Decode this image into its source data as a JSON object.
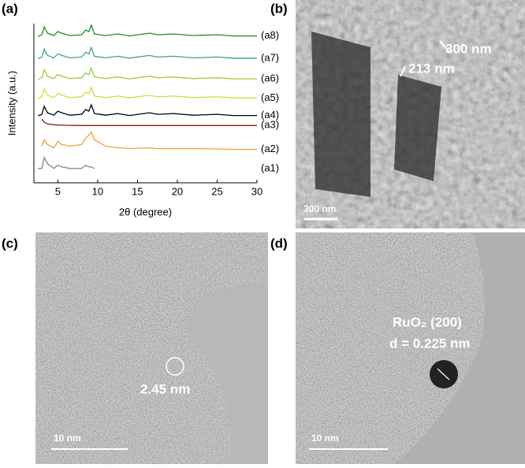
{
  "chart_data": {
    "type": "line",
    "panel_label": "(a)",
    "x_label": "2θ (degree)",
    "y_label": "Intensity (a.u.)",
    "x": [
      2.5,
      3,
      3.3,
      3.7,
      4.5,
      5,
      5.5,
      6.5,
      8,
      8.5,
      8.9,
      9.2,
      9.6,
      11,
      12.5,
      14,
      16.5,
      17.5,
      19.5,
      22,
      25,
      27,
      30
    ],
    "xlim": [
      2,
      30
    ],
    "xticks": [
      5,
      10,
      15,
      20,
      25,
      30
    ],
    "ylim": [
      0,
      100
    ],
    "series": [
      {
        "name": "(a8)",
        "color": "#1e8c1e",
        "values": [
          92,
          93,
          98,
          94,
          92.5,
          95,
          94,
          92.5,
          93,
          96,
          95,
          99,
          93.5,
          92.5,
          93.5,
          92.3,
          94,
          93,
          93.5,
          92.5,
          93,
          92.3,
          92.3
        ]
      },
      {
        "name": "(a7)",
        "color": "#3aaa78",
        "values": [
          78,
          79,
          84,
          80,
          78.5,
          81,
          80,
          78.5,
          79,
          82,
          81,
          85,
          79.5,
          78.5,
          79.5,
          78.3,
          80,
          79,
          79.5,
          78.5,
          79,
          78.3,
          78.3
        ]
      },
      {
        "name": "(a6)",
        "color": "#9ccc32",
        "values": [
          65,
          66,
          71,
          67,
          65.5,
          68,
          67,
          65.5,
          66,
          69,
          68,
          72,
          66.5,
          65.5,
          66.5,
          65.3,
          67,
          66,
          66.5,
          65.5,
          66,
          65.3,
          65.3
        ]
      },
      {
        "name": "(a5)",
        "color": "#d8d640",
        "values": [
          53,
          54,
          59,
          55,
          53.5,
          56,
          55,
          53.5,
          54,
          57,
          56,
          60,
          54.5,
          53.5,
          54.5,
          53.3,
          55,
          54,
          54.5,
          53.5,
          54,
          53.3,
          53.3
        ]
      },
      {
        "name": "(a4)",
        "color": "#000000",
        "values": [
          42,
          43,
          48,
          44,
          42.5,
          45,
          44,
          42.5,
          43,
          46,
          45,
          49,
          43.5,
          42.5,
          43.5,
          42.3,
          44,
          43,
          43.5,
          42.5,
          43,
          42.3,
          42.3
        ]
      },
      {
        "name": "(a3)",
        "color": "#8b1a1a",
        "values": [
          null,
          40,
          38,
          37,
          36.5,
          36.3,
          36.2,
          36.1,
          36,
          36,
          36,
          36,
          36,
          36,
          36,
          36,
          36,
          36,
          36,
          36,
          36,
          36,
          36
        ]
      },
      {
        "name": "(a2)",
        "color": "#f0a040",
        "values": [
          null,
          23,
          27,
          24,
          22,
          26,
          24,
          23,
          24,
          28,
          30,
          32,
          27,
          23,
          22,
          21.5,
          22,
          21.5,
          21.5,
          21.5,
          21.3,
          21,
          21
        ]
      },
      {
        "name": "(a1)",
        "color": "#888888",
        "values": [
          9,
          9,
          16,
          12,
          9,
          11,
          10,
          9,
          9,
          11,
          10,
          10,
          9,
          null,
          null,
          null,
          null,
          null,
          null,
          null,
          null,
          null,
          null
        ]
      }
    ]
  },
  "panels": [
    {
      "label": "(b)",
      "annotations": [
        "300 nm",
        "213 nm"
      ],
      "scale_bar": "300 nm"
    },
    {
      "label": "(c)",
      "annotations": [
        "2.45 nm"
      ],
      "scale_bar": "10 nm"
    },
    {
      "label": "(d)",
      "annotations": [
        "RuO₂ (200)",
        "d = 0.225 nm"
      ],
      "scale_bar": "10 nm"
    }
  ]
}
